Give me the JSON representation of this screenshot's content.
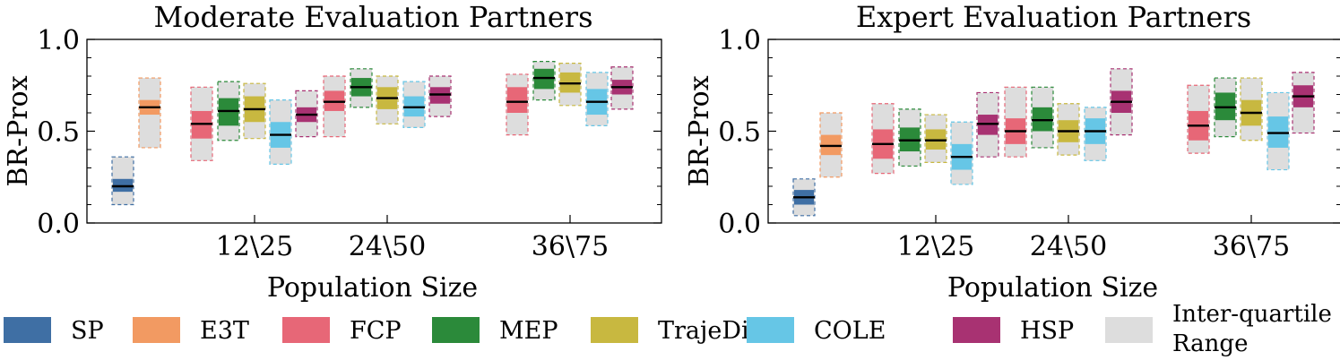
{
  "chart_data": [
    {
      "type": "box",
      "title": "Moderate Evaluation Partners",
      "xlabel": "Population Size",
      "ylabel": "BR-Prox",
      "ylim": [
        0.0,
        1.0
      ],
      "yticks": [
        "0.0",
        "0.5",
        "1.0"
      ],
      "categories": [
        "",
        "12\\25",
        "24\\50",
        "36\\75"
      ],
      "series": [
        {
          "name": "SP",
          "groups": [
            {
              "group": 0,
              "q1": 0.1,
              "q3": 0.36,
              "ci": [
                0.17,
                0.24
              ],
              "median": 0.2
            }
          ]
        },
        {
          "name": "E3T",
          "groups": [
            {
              "group": 0,
              "q1": 0.41,
              "q3": 0.79,
              "ci": [
                0.59,
                0.67
              ],
              "median": 0.63
            }
          ]
        },
        {
          "name": "FCP",
          "groups": [
            {
              "group": 1,
              "q1": 0.34,
              "q3": 0.74,
              "ci": [
                0.46,
                0.61
              ],
              "median": 0.54
            },
            {
              "group": 2,
              "q1": 0.47,
              "q3": 0.8,
              "ci": [
                0.61,
                0.72
              ],
              "median": 0.66
            },
            {
              "group": 3,
              "q1": 0.48,
              "q3": 0.81,
              "ci": [
                0.6,
                0.74
              ],
              "median": 0.66
            }
          ]
        },
        {
          "name": "MEP",
          "groups": [
            {
              "group": 1,
              "q1": 0.45,
              "q3": 0.77,
              "ci": [
                0.53,
                0.68
              ],
              "median": 0.61
            },
            {
              "group": 2,
              "q1": 0.63,
              "q3": 0.84,
              "ci": [
                0.69,
                0.79
              ],
              "median": 0.74
            },
            {
              "group": 3,
              "q1": 0.67,
              "q3": 0.88,
              "ci": [
                0.73,
                0.84
              ],
              "median": 0.79
            }
          ]
        },
        {
          "name": "TrajeDi",
          "groups": [
            {
              "group": 1,
              "q1": 0.46,
              "q3": 0.76,
              "ci": [
                0.55,
                0.69
              ],
              "median": 0.62
            },
            {
              "group": 2,
              "q1": 0.54,
              "q3": 0.8,
              "ci": [
                0.62,
                0.74
              ],
              "median": 0.68
            },
            {
              "group": 3,
              "q1": 0.64,
              "q3": 0.87,
              "ci": [
                0.71,
                0.82
              ],
              "median": 0.76
            }
          ]
        },
        {
          "name": "COLE",
          "groups": [
            {
              "group": 1,
              "q1": 0.32,
              "q3": 0.67,
              "ci": [
                0.41,
                0.55
              ],
              "median": 0.48
            },
            {
              "group": 2,
              "q1": 0.52,
              "q3": 0.77,
              "ci": [
                0.58,
                0.69
              ],
              "median": 0.63
            },
            {
              "group": 3,
              "q1": 0.53,
              "q3": 0.82,
              "ci": [
                0.59,
                0.73
              ],
              "median": 0.66
            }
          ]
        },
        {
          "name": "HSP",
          "groups": [
            {
              "group": 1,
              "q1": 0.47,
              "q3": 0.72,
              "ci": [
                0.55,
                0.63
              ],
              "median": 0.59
            },
            {
              "group": 2,
              "q1": 0.58,
              "q3": 0.8,
              "ci": [
                0.65,
                0.74
              ],
              "median": 0.7
            },
            {
              "group": 3,
              "q1": 0.62,
              "q3": 0.85,
              "ci": [
                0.7,
                0.78
              ],
              "median": 0.74
            }
          ]
        }
      ]
    },
    {
      "type": "box",
      "title": "Expert Evaluation Partners",
      "xlabel": "Population Size",
      "ylabel": "BR-Prox",
      "ylim": [
        0.0,
        1.0
      ],
      "yticks": [
        "0.0",
        "0.5",
        "1.0"
      ],
      "categories": [
        "",
        "12\\25",
        "24\\50",
        "36\\75"
      ],
      "series": [
        {
          "name": "SP",
          "groups": [
            {
              "group": 0,
              "q1": 0.04,
              "q3": 0.24,
              "ci": [
                0.1,
                0.18
              ],
              "median": 0.14
            }
          ]
        },
        {
          "name": "E3T",
          "groups": [
            {
              "group": 0,
              "q1": 0.25,
              "q3": 0.6,
              "ci": [
                0.37,
                0.48
              ],
              "median": 0.42
            }
          ]
        },
        {
          "name": "FCP",
          "groups": [
            {
              "group": 1,
              "q1": 0.27,
              "q3": 0.65,
              "ci": [
                0.35,
                0.51
              ],
              "median": 0.43
            },
            {
              "group": 2,
              "q1": 0.36,
              "q3": 0.74,
              "ci": [
                0.43,
                0.57
              ],
              "median": 0.5
            },
            {
              "group": 3,
              "q1": 0.38,
              "q3": 0.75,
              "ci": [
                0.45,
                0.61
              ],
              "median": 0.53
            }
          ]
        },
        {
          "name": "MEP",
          "groups": [
            {
              "group": 1,
              "q1": 0.31,
              "q3": 0.62,
              "ci": [
                0.39,
                0.52
              ],
              "median": 0.45
            },
            {
              "group": 2,
              "q1": 0.41,
              "q3": 0.74,
              "ci": [
                0.5,
                0.63
              ],
              "median": 0.56
            },
            {
              "group": 3,
              "q1": 0.47,
              "q3": 0.79,
              "ci": [
                0.56,
                0.71
              ],
              "median": 0.63
            }
          ]
        },
        {
          "name": "TrajeDi",
          "groups": [
            {
              "group": 1,
              "q1": 0.33,
              "q3": 0.59,
              "ci": [
                0.4,
                0.51
              ],
              "median": 0.45
            },
            {
              "group": 2,
              "q1": 0.37,
              "q3": 0.65,
              "ci": [
                0.44,
                0.56
              ],
              "median": 0.5
            },
            {
              "group": 3,
              "q1": 0.45,
              "q3": 0.79,
              "ci": [
                0.53,
                0.67
              ],
              "median": 0.6
            }
          ]
        },
        {
          "name": "COLE",
          "groups": [
            {
              "group": 1,
              "q1": 0.21,
              "q3": 0.55,
              "ci": [
                0.29,
                0.43
              ],
              "median": 0.36
            },
            {
              "group": 2,
              "q1": 0.34,
              "q3": 0.63,
              "ci": [
                0.43,
                0.57
              ],
              "median": 0.5
            },
            {
              "group": 3,
              "q1": 0.29,
              "q3": 0.71,
              "ci": [
                0.41,
                0.58
              ],
              "median": 0.49
            }
          ]
        },
        {
          "name": "HSP",
          "groups": [
            {
              "group": 1,
              "q1": 0.36,
              "q3": 0.71,
              "ci": [
                0.48,
                0.59
              ],
              "median": 0.54
            },
            {
              "group": 2,
              "q1": 0.48,
              "q3": 0.84,
              "ci": [
                0.6,
                0.72
              ],
              "median": 0.66
            },
            {
              "group": 3,
              "q1": 0.49,
              "q3": 0.82,
              "ci": [
                0.63,
                0.75
              ],
              "median": 0.69
            }
          ]
        }
      ]
    }
  ],
  "legend": {
    "placement": "bottom",
    "items": [
      {
        "label": "SP",
        "color": "#3f6fa4"
      },
      {
        "label": "E3T",
        "color": "#f29a62"
      },
      {
        "label": "FCP",
        "color": "#e76777"
      },
      {
        "label": "MEP",
        "color": "#2b8a3a"
      },
      {
        "label": "TrajeDi",
        "color": "#c8b840"
      },
      {
        "label": "COLE",
        "color": "#66c6e6"
      },
      {
        "label": "HSP",
        "color": "#a83272"
      },
      {
        "label": "Inter-quartile Range",
        "line1": "Inter-quartile",
        "line2": "Range",
        "color": "#dddddd"
      }
    ]
  }
}
